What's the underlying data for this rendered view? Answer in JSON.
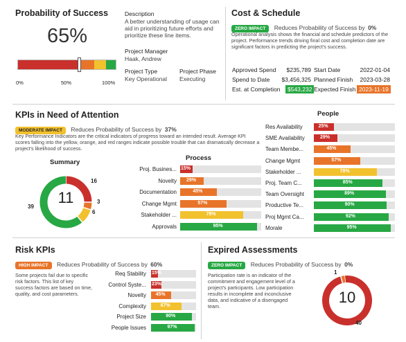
{
  "probability": {
    "title": "Probability of Success",
    "value_label": "65%",
    "value": 65,
    "ticks": [
      "0%",
      "50%",
      "100%"
    ],
    "segments": [
      {
        "color": "#c9302c",
        "percent": 62
      },
      {
        "color": "#e8742a",
        "percent": 16
      },
      {
        "color": "#f2c12e",
        "percent": 12
      },
      {
        "color": "#27a844",
        "percent": 10
      }
    ]
  },
  "project": {
    "description_label": "Description",
    "description": "A better understanding of usage can aid in prioritizing future efforts and prioritize these line items.",
    "manager_label": "Project Manager",
    "manager": "Haak, Andrew",
    "type_label": "Project Type",
    "type": "Key Operational",
    "phase_label": "Project Phase",
    "phase": "Executing"
  },
  "cost_schedule": {
    "title": "Cost & Schedule",
    "badge": "ZERO IMPACT",
    "badge_color": "#27a844",
    "impact_text": "Reduces Probability of Success by",
    "impact_value": "0%",
    "description": "Operational analysis shows the financial and schedule predictors of the project. Performance trends driving final cost and completion date are significant factors in predicting the project's success.",
    "rows": [
      {
        "label": "Approved Spend",
        "value": "$235,789",
        "label2": "Start Date",
        "value2": "2022-01-04"
      },
      {
        "label": "Spend to Date",
        "value": "$3,456,325",
        "label2": "Planned Finish",
        "value2": "2023-03-28"
      },
      {
        "label": "Est. at Completion",
        "value": "$543,232",
        "label2": "Expected Finish",
        "value2": "2023-11-19"
      }
    ]
  },
  "kpis": {
    "title": "KPIs in Need of Attention",
    "badge": "MODERATE IMPACT",
    "badge_color": "#f2c12e",
    "impact_text": "Reduces Probability of Success by",
    "impact_value": "37%",
    "description": "Key Performance Indicators are the critical indicators of progress toward an intended result. Average KPI scores falling into the yellow, orange, and red ranges indicate possible trouble that can dramatically decrease a project's likelihood of success.",
    "summary_title": "Summary",
    "summary_center": "11",
    "summary_segments": [
      {
        "value": 16,
        "label": "16",
        "color": "#c9302c"
      },
      {
        "value": 3,
        "label": "3",
        "color": "#e8742a"
      },
      {
        "value": 6,
        "label": "6",
        "color": "#f2c12e"
      },
      {
        "value": 39,
        "label": "39",
        "color": "#27a844"
      }
    ],
    "process_title": "Process",
    "process": [
      {
        "label": "Proj. Busines...",
        "value": 15,
        "text": "15%",
        "color": "#c9302c"
      },
      {
        "label": "Novelty",
        "value": 29,
        "text": "29%",
        "color": "#e8742a"
      },
      {
        "label": "Documentation",
        "value": 45,
        "text": "45%",
        "color": "#e8742a"
      },
      {
        "label": "Change Mgmt",
        "value": 57,
        "text": "57%",
        "color": "#e8742a"
      },
      {
        "label": "Stakeholder ...",
        "value": 78,
        "text": "78%",
        "color": "#f2c12e"
      },
      {
        "label": "Approvals",
        "value": 95,
        "text": "95%",
        "color": "#27a844"
      }
    ],
    "people_title": "People",
    "people": [
      {
        "label": "Res Availability",
        "value": 25,
        "text": "25%",
        "color": "#c9302c"
      },
      {
        "label": "SME Availability",
        "value": 29,
        "text": "29%",
        "color": "#c9302c"
      },
      {
        "label": "Team Membe...",
        "value": 45,
        "text": "45%",
        "color": "#e8742a"
      },
      {
        "label": "Change Mgmt",
        "value": 57,
        "text": "57%",
        "color": "#e8742a"
      },
      {
        "label": "Stakeholder ...",
        "value": 78,
        "text": "78%",
        "color": "#f2c12e"
      },
      {
        "label": "Proj. Team C...",
        "value": 85,
        "text": "85%",
        "color": "#27a844"
      },
      {
        "label": "Team Oversight",
        "value": 89,
        "text": "89%",
        "color": "#27a844"
      },
      {
        "label": "Productive Te...",
        "value": 90,
        "text": "90%",
        "color": "#27a844"
      },
      {
        "label": "Proj Mgmt Ca...",
        "value": 92,
        "text": "92%",
        "color": "#27a844"
      },
      {
        "label": "Morale",
        "value": 95,
        "text": "95%",
        "color": "#27a844"
      }
    ]
  },
  "risk": {
    "title": "Risk KPIs",
    "badge": "HIGH IMPACT",
    "badge_color": "#e8742a",
    "impact_text": "Reduces Probability of Success by",
    "impact_value": "60%",
    "description": "Some projects fail due to specific risk factors. This list of key success factors are based on time, quality, and cost parameters.",
    "items": [
      {
        "label": "Req Stability",
        "value": 15,
        "text": "15%",
        "color": "#c9302c"
      },
      {
        "label": "Control Syste...",
        "value": 23,
        "text": "23%",
        "color": "#c9302c"
      },
      {
        "label": "Novelty",
        "value": 45,
        "text": "45%",
        "color": "#e8742a"
      },
      {
        "label": "Complexity",
        "value": 67,
        "text": "67%",
        "color": "#f2c12e"
      },
      {
        "label": "Project Size",
        "value": 90,
        "text": "90%",
        "color": "#27a844"
      },
      {
        "label": "People Issues",
        "value": 97,
        "text": "97%",
        "color": "#27a844"
      }
    ]
  },
  "expired": {
    "title": "Expired Assessments",
    "badge": "ZERO IMPACT",
    "badge_color": "#27a844",
    "impact_text": "Reduces Probability of Success by",
    "impact_value": "0%",
    "description": "Participation rate is an indicator of the commitment and engagement level of a project's participants. Low participation results in incomplete and inconclusive data, and indicative of a disengaged team.",
    "center": "10",
    "segments": [
      {
        "value": 40,
        "label": "40",
        "color": "#c9302c"
      },
      {
        "value": 1,
        "label": "1",
        "color": "#e8742a"
      }
    ]
  }
}
